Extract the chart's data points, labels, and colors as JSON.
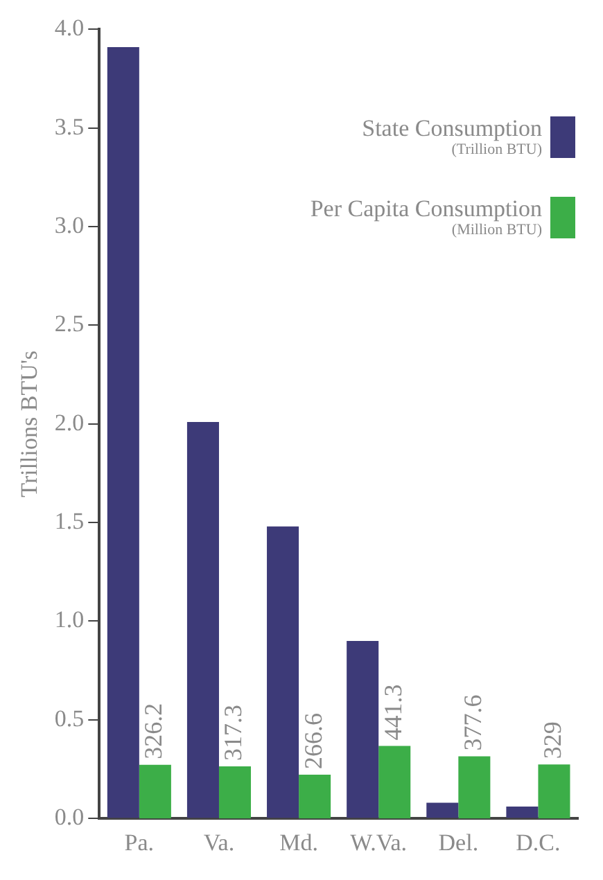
{
  "chart_data": {
    "type": "bar",
    "ylabel": "Trillions BTU's",
    "categories": [
      "Pa.",
      "Va.",
      "Md.",
      "W.Va.",
      "Del.",
      "D.C."
    ],
    "series": [
      {
        "name": "State Consumption (Trillion BTU)",
        "color": "#3d3a78",
        "values": [
          3.91,
          2.01,
          1.48,
          0.9,
          0.08,
          0.06
        ]
      },
      {
        "name": "Per Capita Consumption (Million BTU)",
        "color": "#3cae48",
        "axis": "y2",
        "values": [
          326.2,
          317.3,
          266.6,
          441.3,
          377.6,
          329
        ],
        "data_labels": true
      }
    ],
    "y2lim": [
      0,
      4800
    ],
    "ylim": [
      0,
      4
    ],
    "yticks": [
      {
        "value": 0,
        "label": "0.0"
      },
      {
        "value": 0.5,
        "label": "0.5"
      },
      {
        "value": 1,
        "label": "1.0"
      },
      {
        "value": 1.5,
        "label": "1.5"
      },
      {
        "value": 2,
        "label": "2.0"
      },
      {
        "value": 2.5,
        "label": "2.5"
      },
      {
        "value": 3,
        "label": "3.0"
      },
      {
        "value": 3.5,
        "label": "3.5"
      },
      {
        "value": 4,
        "label": "4.0"
      }
    ],
    "grid": false,
    "legend": "top right"
  }
}
